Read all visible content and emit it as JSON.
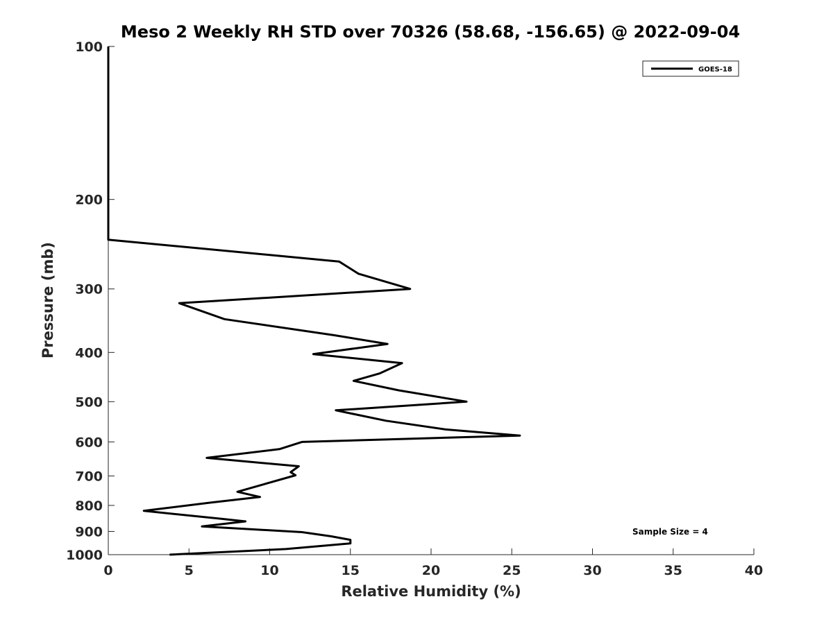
{
  "chart_data": {
    "type": "line",
    "title": "Meso 2 Weekly RH STD over 70326 (58.68, -156.65) @ 2022-09-04",
    "xlabel": "Relative Humidity (%)",
    "ylabel": "Pressure (mb)",
    "xlim": [
      0,
      40
    ],
    "ylim": [
      100,
      1000
    ],
    "yscale": "log",
    "y_reversed": true,
    "grid": false,
    "x_ticks": [
      0,
      5,
      10,
      15,
      20,
      25,
      30,
      35,
      40
    ],
    "x_tick_labels": [
      "0",
      "5",
      "10",
      "15",
      "20",
      "25",
      "30",
      "35",
      "40"
    ],
    "y_ticks": [
      100,
      200,
      300,
      400,
      500,
      600,
      700,
      800,
      900,
      1000
    ],
    "y_tick_labels": [
      "100",
      "200",
      "300",
      "400",
      "500",
      "600",
      "700",
      "800",
      "900",
      "1000"
    ],
    "legend": {
      "position": "top-right",
      "entries": [
        "GOES-18"
      ]
    },
    "annotation": "Sample Size = 4",
    "series": [
      {
        "name": "GOES-18",
        "color": "#000000",
        "points": [
          [
            0,
            100
          ],
          [
            0,
            150
          ],
          [
            0,
            200
          ],
          [
            0,
            240
          ],
          [
            14.3,
            265
          ],
          [
            15.5,
            280
          ],
          [
            18.7,
            300
          ],
          [
            4.4,
            320
          ],
          [
            7.2,
            344
          ],
          [
            14,
            370
          ],
          [
            17.3,
            385
          ],
          [
            12.7,
            403
          ],
          [
            18.2,
            420
          ],
          [
            16.8,
            440
          ],
          [
            15.2,
            455
          ],
          [
            18,
            475
          ],
          [
            22.2,
            500
          ],
          [
            14.1,
            520
          ],
          [
            17.2,
            545
          ],
          [
            20.9,
            567
          ],
          [
            25.5,
            583
          ],
          [
            12,
            600
          ],
          [
            10.6,
            620
          ],
          [
            6.1,
            645
          ],
          [
            11.8,
            670
          ],
          [
            11.3,
            688
          ],
          [
            11.6,
            698
          ],
          [
            8,
            752
          ],
          [
            9.4,
            770
          ],
          [
            6.3,
            790
          ],
          [
            2.2,
            820
          ],
          [
            7,
            850
          ],
          [
            8.5,
            860
          ],
          [
            5.8,
            880
          ],
          [
            12,
            903
          ],
          [
            13.8,
            920
          ],
          [
            15,
            935
          ],
          [
            15,
            950
          ],
          [
            11,
            975
          ],
          [
            3.8,
            1000
          ]
        ]
      }
    ]
  }
}
